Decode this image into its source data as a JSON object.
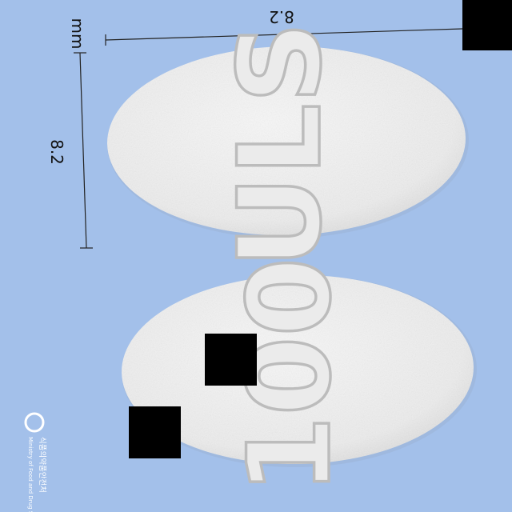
{
  "photo": {
    "background_color": "#a3c0ea",
    "tablet_color": "#f1f1f1"
  },
  "dimensions": {
    "width_value": "8.2",
    "height_value": "8.2",
    "unit": "mm"
  },
  "tablets": [
    {
      "side": "front",
      "imprint": "ULS"
    },
    {
      "side": "back",
      "imprint": "100"
    }
  ],
  "logo": {
    "line1": "식품의약품안전처",
    "line2": "Ministry of Food and Drug Safety"
  }
}
